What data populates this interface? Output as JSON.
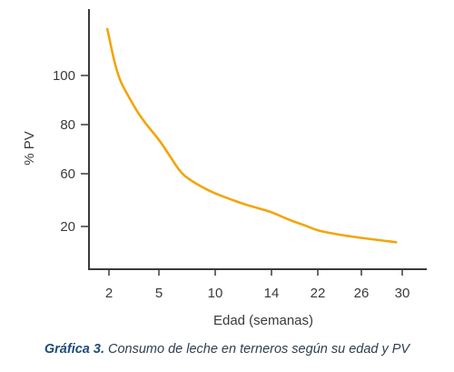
{
  "chart_data": {
    "type": "line",
    "xlabel": "Edad (semanas)",
    "ylabel": "% PV",
    "x_ticks": [
      "2",
      "5",
      "10",
      "14",
      "22",
      "26",
      "30"
    ],
    "y_ticks": [
      "20",
      "60",
      "80",
      "100"
    ],
    "ylim": [
      10,
      122
    ],
    "grid": false,
    "line_color": "#f2a50c",
    "axis_color": "#3a3a3a",
    "series": [
      {
        "x_ticks_units": true,
        "points": [
          [
            1.9,
            119
          ],
          [
            2.5,
            100
          ],
          [
            3.2,
            91
          ],
          [
            4.0,
            82
          ],
          [
            5.0,
            74
          ],
          [
            6.0,
            67
          ],
          [
            7.0,
            60
          ],
          [
            8.0,
            54
          ],
          [
            9.0,
            49
          ],
          [
            10.0,
            45
          ],
          [
            11.0,
            41
          ],
          [
            12.0,
            37
          ],
          [
            13.0,
            34
          ],
          [
            14.0,
            31
          ],
          [
            16.0,
            27
          ],
          [
            18.0,
            23.5
          ],
          [
            20.0,
            20.5
          ],
          [
            22.0,
            18
          ],
          [
            24.0,
            16
          ],
          [
            26.0,
            14.5
          ],
          [
            28.0,
            13.3
          ],
          [
            29.4,
            12.5
          ]
        ]
      }
    ]
  },
  "caption": {
    "number": "Gráfica 3.",
    "text": " Consumo de leche en terneros según su edad y PV"
  }
}
